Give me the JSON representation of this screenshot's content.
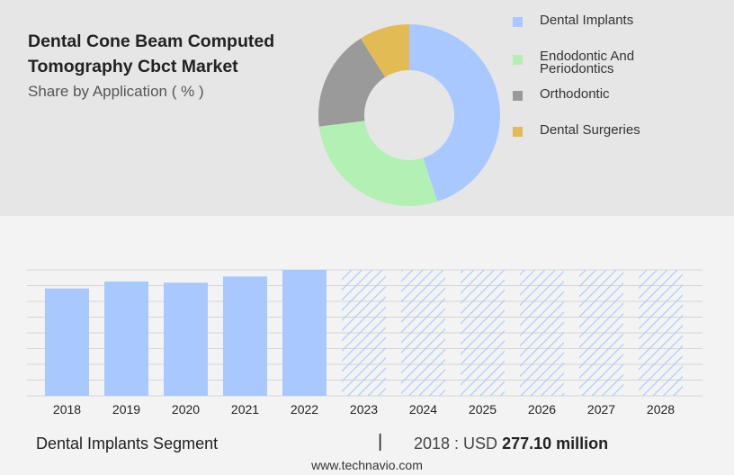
{
  "header": {
    "title": "Dental Cone Beam Computed Tomography Cbct Market",
    "subtitle": "Share by Application ( % )"
  },
  "chart_data": [
    {
      "type": "pie",
      "variant": "donut",
      "series": [
        {
          "name": "Dental Implants",
          "value": 45,
          "color": "#a8c8ff"
        },
        {
          "name": "Endodontic And Periodontics",
          "value": 28,
          "color": "#b3f0b3"
        },
        {
          "name": "Orthodontic",
          "value": 18,
          "color": "#9a9a9a"
        },
        {
          "name": "Dental Surgeries",
          "value": 9,
          "color": "#e3bb55"
        }
      ],
      "legend_position": "right"
    },
    {
      "type": "bar",
      "categories": [
        "2018",
        "2019",
        "2020",
        "2021",
        "2022",
        "2023",
        "2024",
        "2025",
        "2026",
        "2027",
        "2028"
      ],
      "values": [
        277.1,
        295,
        292,
        308,
        325,
        325,
        325,
        325,
        325,
        325,
        325
      ],
      "forecast_from": "2023",
      "ylim": [
        0,
        325
      ],
      "grid": true,
      "bar_color": "#a8c8ff",
      "forecast_style": "hatched"
    }
  ],
  "footer": {
    "segment": "Dental Implants Segment",
    "separator": "|",
    "value_prefix": "2018 : USD",
    "value_bold": "277.10 million",
    "url": "www.technavio.com"
  }
}
